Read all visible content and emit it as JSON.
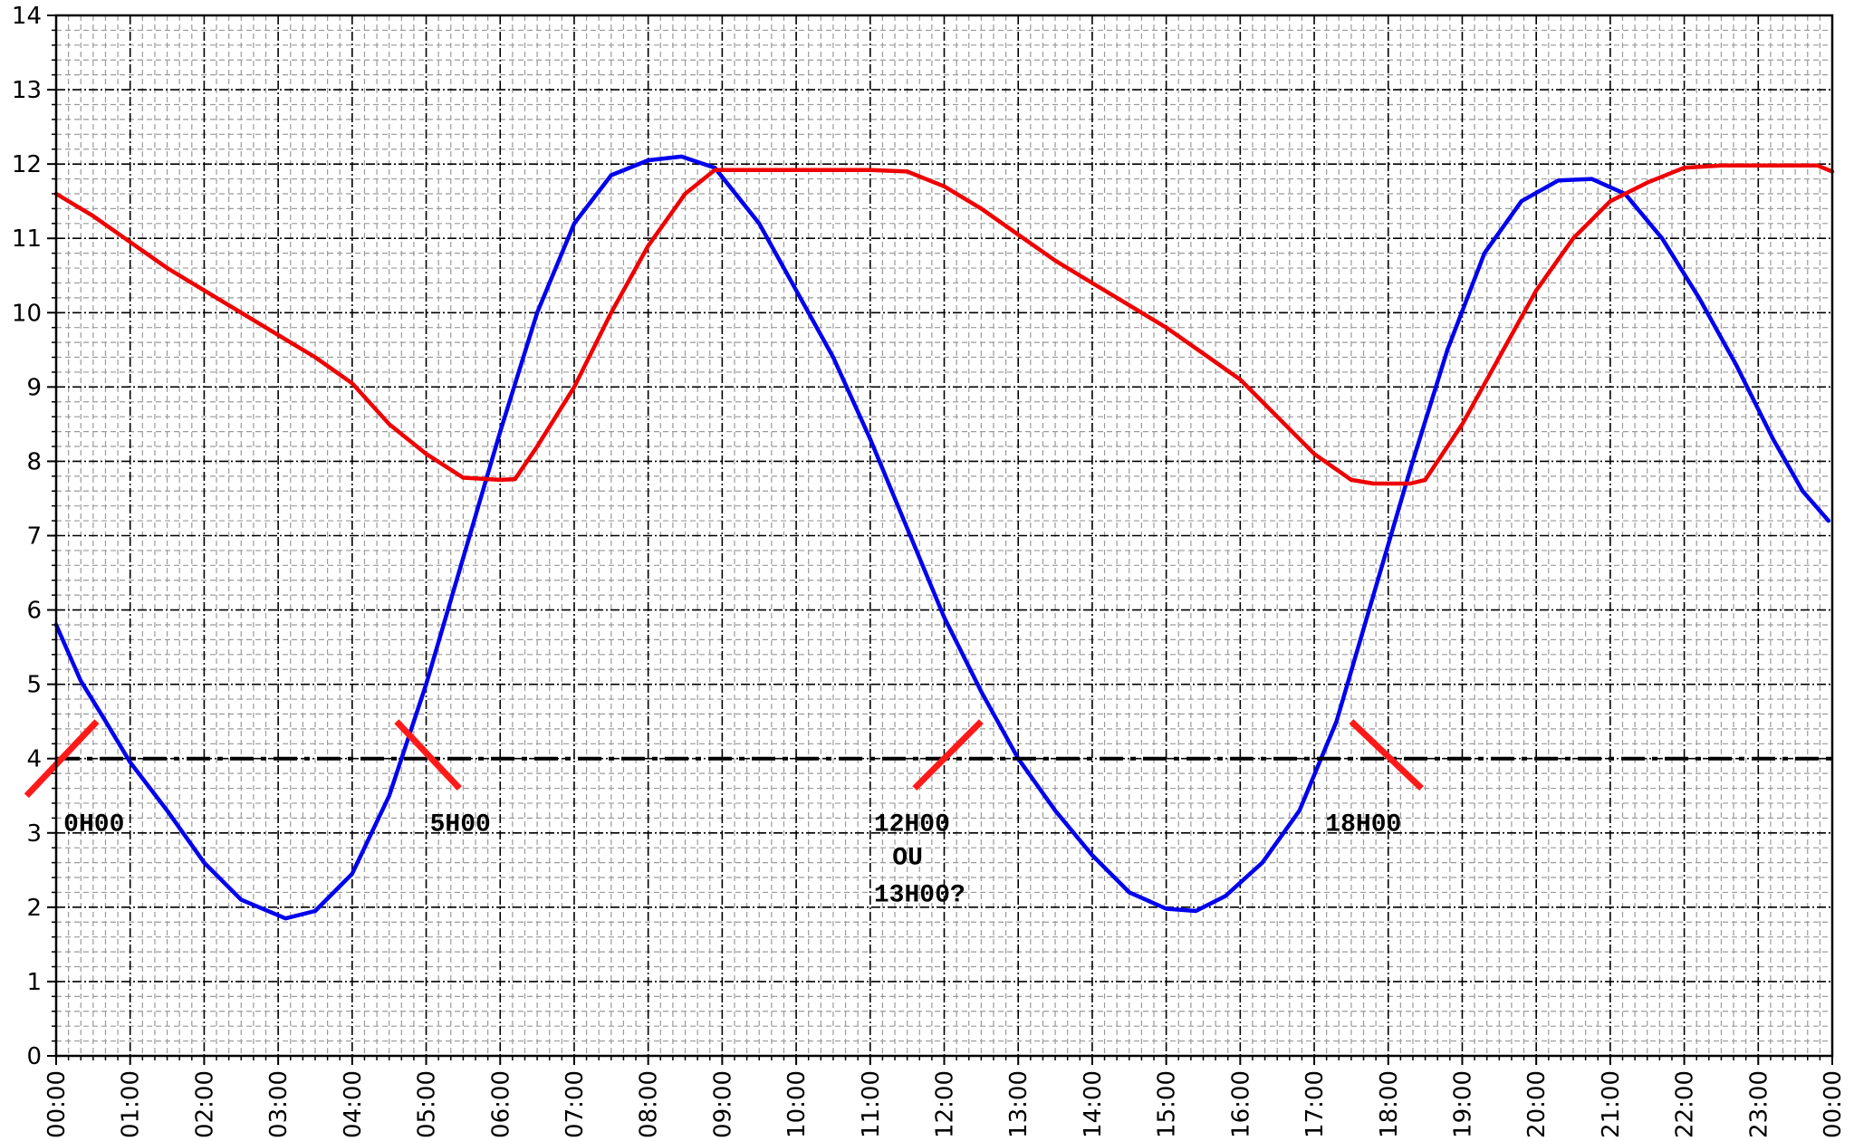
{
  "chart_data": {
    "type": "line",
    "title": "",
    "xlabel": "",
    "ylabel": "",
    "xlim": [
      0,
      24
    ],
    "ylim": [
      0,
      14
    ],
    "grid": true,
    "y_ticks": [
      "0",
      "1",
      "2",
      "3",
      "4",
      "5",
      "6",
      "7",
      "8",
      "9",
      "10",
      "11",
      "12",
      "13",
      "14"
    ],
    "x_ticks": [
      "00:00",
      "01:00",
      "02:00",
      "03:00",
      "04:00",
      "05:00",
      "06:00",
      "07:00",
      "08:00",
      "09:00",
      "10:00",
      "11:00",
      "12:00",
      "13:00",
      "14:00",
      "15:00",
      "16:00",
      "17:00",
      "18:00",
      "19:00",
      "20:00",
      "21:00",
      "22:00",
      "23:00",
      "00:00"
    ],
    "colors": {
      "blue": "#0000ee",
      "red": "#ee0000",
      "threshold": "#000000",
      "marker": "#ff1a1a"
    },
    "series": [
      {
        "color": "#0000ee",
        "x": [
          0,
          0.33,
          0.67,
          1.0,
          1.5,
          2.0,
          2.5,
          3.1,
          3.5,
          4.0,
          4.5,
          5.0,
          5.5,
          6.0,
          6.5,
          7.0,
          7.5,
          8.0,
          8.45,
          8.9,
          9.5,
          10.0,
          10.5,
          11.0,
          11.5,
          12.0,
          12.5,
          13.0,
          13.5,
          14.0,
          14.5,
          15.0,
          15.4,
          15.8,
          16.3,
          16.8,
          17.3,
          17.8,
          18.3,
          18.8,
          19.3,
          19.8,
          20.3,
          20.75,
          21.2,
          21.7,
          22.2,
          22.7,
          23.2,
          23.6,
          23.95
        ],
        "y": [
          5.8,
          5.05,
          4.5,
          3.95,
          3.3,
          2.6,
          2.1,
          1.85,
          1.95,
          2.45,
          3.5,
          5.0,
          6.7,
          8.4,
          10.0,
          11.2,
          11.85,
          12.05,
          12.1,
          11.95,
          11.2,
          10.3,
          9.4,
          8.3,
          7.1,
          5.9,
          4.9,
          4.0,
          3.3,
          2.7,
          2.2,
          1.98,
          1.95,
          2.15,
          2.6,
          3.3,
          4.5,
          6.2,
          7.9,
          9.5,
          10.8,
          11.5,
          11.78,
          11.8,
          11.6,
          11.0,
          10.2,
          9.3,
          8.3,
          7.6,
          7.2
        ]
      },
      {
        "color": "#ee0000",
        "x": [
          0,
          0.5,
          1.0,
          1.5,
          2.0,
          2.5,
          3.0,
          3.5,
          4.0,
          4.5,
          5.0,
          5.5,
          6.0,
          6.2,
          6.5,
          7.0,
          7.5,
          8.0,
          8.5,
          8.9,
          9.5,
          10.0,
          10.5,
          11.0,
          11.5,
          12.0,
          12.5,
          13.0,
          13.5,
          14.0,
          14.5,
          15.0,
          15.5,
          16.0,
          16.5,
          17.0,
          17.5,
          17.8,
          18.3,
          18.5,
          19.0,
          19.5,
          20.0,
          20.5,
          21.0,
          21.5,
          22.0,
          22.5,
          23.0,
          23.5,
          23.8,
          24.0
        ],
        "y": [
          11.6,
          11.3,
          10.95,
          10.6,
          10.3,
          10.0,
          9.7,
          9.4,
          9.05,
          8.5,
          8.1,
          7.78,
          7.75,
          7.76,
          8.2,
          9.0,
          10.0,
          10.9,
          11.6,
          11.92,
          11.92,
          11.92,
          11.92,
          11.92,
          11.9,
          11.7,
          11.4,
          11.05,
          10.7,
          10.4,
          10.1,
          9.8,
          9.45,
          9.1,
          8.6,
          8.1,
          7.75,
          7.7,
          7.7,
          7.75,
          8.5,
          9.4,
          10.3,
          11.0,
          11.5,
          11.75,
          11.95,
          11.98,
          11.98,
          11.98,
          11.98,
          11.9
        ]
      },
      {
        "color": "#000000",
        "style": "dash-dot",
        "x": [
          0,
          24
        ],
        "y": [
          4,
          4
        ]
      }
    ],
    "annotations": [
      {
        "text": "0H00",
        "x": 0.1,
        "y": 3.15
      },
      {
        "text": "5H00",
        "x": 5.05,
        "y": 3.15
      },
      {
        "text": "12H00",
        "x": 11.05,
        "y": 3.15
      },
      {
        "text": "OU",
        "x": 11.3,
        "y": 2.7
      },
      {
        "text": "13H00?",
        "x": 11.05,
        "y": 2.2
      },
      {
        "text": "18H00",
        "x": 17.15,
        "y": 3.15
      }
    ],
    "markers": [
      {
        "x1": -0.4,
        "y1": 3.5,
        "x2": 0.55,
        "y2": 4.5
      },
      {
        "x1": 4.6,
        "y1": 4.5,
        "x2": 5.45,
        "y2": 3.6
      },
      {
        "x1": 11.6,
        "y1": 3.6,
        "x2": 12.5,
        "y2": 4.5
      },
      {
        "x1": 17.5,
        "y1": 4.5,
        "x2": 18.45,
        "y2": 3.6
      }
    ]
  }
}
